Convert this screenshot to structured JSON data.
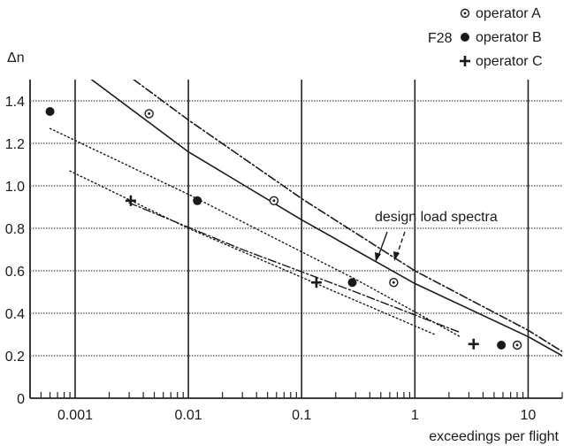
{
  "chart_data": {
    "type": "scatter",
    "title": "",
    "aircraft_label": "F28",
    "xlabel": "exceedings per flight",
    "ylabel": "Δn",
    "x_scale": "log",
    "xlim": [
      0.0004,
      20
    ],
    "ylim": [
      0,
      1.5
    ],
    "x_ticks": [
      {
        "value": 0.001,
        "label": "0.001"
      },
      {
        "value": 0.01,
        "label": "0.01"
      },
      {
        "value": 0.1,
        "label": "0.1"
      },
      {
        "value": 1,
        "label": "1"
      },
      {
        "value": 10,
        "label": "10"
      }
    ],
    "y_ticks": [
      {
        "value": 0,
        "label": "0"
      },
      {
        "value": 0.2,
        "label": "0.2"
      },
      {
        "value": 0.4,
        "label": "0.4"
      },
      {
        "value": 0.6,
        "label": "0.6"
      },
      {
        "value": 0.8,
        "label": "0.8"
      },
      {
        "value": 1.0,
        "label": "1.0"
      },
      {
        "value": 1.2,
        "label": "1.2"
      },
      {
        "value": 1.4,
        "label": "1.4"
      }
    ],
    "grid": true,
    "legend_position": "top-right",
    "series": [
      {
        "name": "operator A",
        "marker": "dotted-circle",
        "points": [
          [
            0.0045,
            1.34
          ],
          [
            0.057,
            0.93
          ],
          [
            0.65,
            0.545
          ],
          [
            8.0,
            0.25
          ]
        ]
      },
      {
        "name": "operator B",
        "marker": "filled-circle",
        "points": [
          [
            0.0006,
            1.35
          ],
          [
            0.012,
            0.93
          ],
          [
            0.28,
            0.545
          ],
          [
            5.8,
            0.25
          ]
        ]
      },
      {
        "name": "operator C",
        "marker": "plus",
        "points": [
          [
            0.0031,
            0.93
          ],
          [
            0.135,
            0.545
          ],
          [
            3.3,
            0.255
          ]
        ]
      }
    ],
    "trend_lines": [
      {
        "series": "operator B",
        "style": "dotted",
        "points": [
          [
            0.0006,
            1.27
          ],
          [
            0.01,
            0.96
          ],
          [
            0.3,
            0.56
          ],
          [
            2.5,
            0.29
          ]
        ]
      },
      {
        "series": "operator C",
        "style": "dotted",
        "points": [
          [
            0.0009,
            1.07
          ],
          [
            0.01,
            0.8
          ],
          [
            0.2,
            0.5
          ],
          [
            1.5,
            0.3
          ]
        ]
      },
      {
        "series": "operator B",
        "style": "dash-dot",
        "points": [
          [
            0.003,
            0.92
          ],
          [
            0.03,
            0.7
          ],
          [
            0.3,
            0.5
          ],
          [
            2.5,
            0.31
          ]
        ]
      }
    ],
    "design_load_spectra": {
      "label": "design load spectra",
      "curves": [
        {
          "style": "solid",
          "points": [
            [
              0.0014,
              1.5
            ],
            [
              0.01,
              1.16
            ],
            [
              0.1,
              0.84
            ],
            [
              1,
              0.54
            ],
            [
              10,
              0.29
            ],
            [
              20,
              0.2
            ]
          ]
        },
        {
          "style": "dash-dot",
          "points": [
            [
              0.0033,
              1.5
            ],
            [
              0.01,
              1.31
            ],
            [
              0.1,
              0.94
            ],
            [
              1,
              0.6
            ],
            [
              10,
              0.32
            ],
            [
              20,
              0.22
            ]
          ]
        }
      ]
    }
  }
}
